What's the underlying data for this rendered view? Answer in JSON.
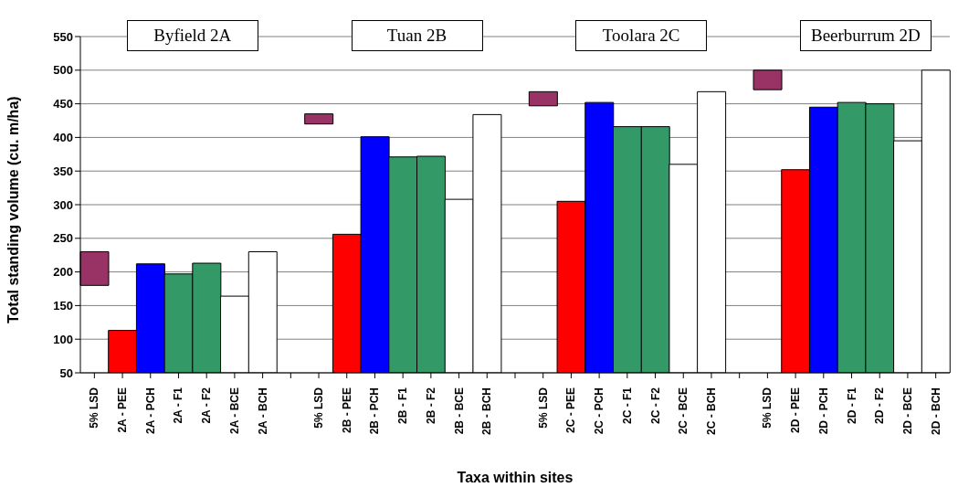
{
  "chart_data": {
    "type": "bar",
    "xlabel": "Taxa within sites",
    "ylabel": "Total standing volume (cu. m/ha)",
    "categories": [
      "5% LSD",
      "2A - PEE",
      "2A - PCH",
      "2A - F1",
      "2A - F2",
      "2A - BCE",
      "2A - BCH",
      null,
      "5% LSD",
      "2B - PEE",
      "2B - PCH",
      "2B - F1",
      "2B - F2",
      "2B - BCE",
      "2B - BCH",
      null,
      "5% LSD",
      "2C - PEE",
      "2C - PCH",
      "2C - F1",
      "2C - F2",
      "2C - BCE",
      "2C - BCH",
      null,
      "5% LSD",
      "2D - PEE",
      "2D - PCH",
      "2D - F1",
      "2D - F2",
      "2D - BCE",
      "2D - BCH"
    ],
    "values": [
      50,
      113,
      212,
      197,
      213,
      164,
      230,
      null,
      15,
      256,
      401,
      371,
      372,
      308,
      434,
      null,
      21,
      305,
      452,
      416,
      416,
      360,
      468,
      null,
      29,
      352,
      445,
      452,
      450,
      395,
      500
    ],
    "base": [
      180,
      null,
      null,
      null,
      null,
      null,
      null,
      null,
      420,
      null,
      null,
      null,
      null,
      null,
      null,
      null,
      447,
      null,
      null,
      null,
      null,
      null,
      null,
      null,
      471,
      null,
      null,
      null,
      null,
      null,
      null
    ],
    "colors": [
      "#993366",
      "#ff0000",
      "#0000ff",
      "#339966",
      "#339966",
      "#ffffff",
      "#ffffff",
      null,
      "#993366",
      "#ff0000",
      "#0000ff",
      "#339966",
      "#339966",
      "#ffffff",
      "#ffffff",
      null,
      "#993366",
      "#ff0000",
      "#0000ff",
      "#339966",
      "#339966",
      "#ffffff",
      "#ffffff",
      null,
      "#993366",
      "#ff0000",
      "#0000ff",
      "#339966",
      "#339966",
      "#ffffff",
      "#ffffff"
    ],
    "ylim": [
      50,
      550
    ],
    "yticks": [
      50,
      100,
      150,
      200,
      250,
      300,
      350,
      400,
      450,
      500,
      550
    ],
    "grid": "y",
    "legend": false,
    "annotations": [
      "Byfield 2A",
      "Tuan 2B",
      "Toolara 2C",
      "Beerburrum 2D"
    ]
  }
}
